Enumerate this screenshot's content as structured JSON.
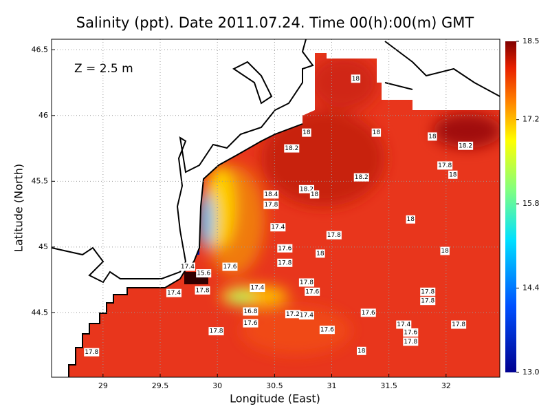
{
  "map": {
    "title": "Salinity (ppt). Date 2011.07.24. Time 00(h):00(m) GMT",
    "annotation": "Z = 2.5 m",
    "x_label": "Longitude (East)",
    "y_label": "Latitude (North)",
    "xlim": [
      28.55,
      32.47
    ],
    "ylim": [
      44.01,
      46.58
    ],
    "xticks": [
      29,
      29.5,
      30,
      30.5,
      31,
      31.5,
      32
    ],
    "yticks": [
      44.5,
      45,
      45.5,
      46,
      46.5
    ],
    "grid": true,
    "colorbar": {
      "lim": [
        13,
        18.5
      ],
      "ticks": [
        {
          "value": 13,
          "label": "13.0"
        },
        14.4,
        15.8,
        17.2,
        18.5
      ]
    },
    "contour_labels": [
      {
        "lon": 31.21,
        "lat": 46.28,
        "value": 18
      },
      {
        "lon": 30.78,
        "lat": 45.87,
        "value": 18
      },
      {
        "lon": 31.39,
        "lat": 45.87,
        "value": 18
      },
      {
        "lon": 31.88,
        "lat": 45.84,
        "value": 18
      },
      {
        "lon": 30.65,
        "lat": 45.75,
        "value": 18.2
      },
      {
        "lon": 32.17,
        "lat": 45.77,
        "value": 18.2
      },
      {
        "lon": 31.99,
        "lat": 45.62,
        "value": 17.8
      },
      {
        "lon": 32.06,
        "lat": 45.55,
        "value": 18
      },
      {
        "lon": 31.26,
        "lat": 45.53,
        "value": 18.2
      },
      {
        "lon": 30.47,
        "lat": 45.4,
        "value": 18.4
      },
      {
        "lon": 30.78,
        "lat": 45.44,
        "value": 18.2
      },
      {
        "lon": 30.85,
        "lat": 45.4,
        "value": 18
      },
      {
        "lon": 30.47,
        "lat": 45.32,
        "value": 17.8
      },
      {
        "lon": 31.69,
        "lat": 45.21,
        "value": 18
      },
      {
        "lon": 30.53,
        "lat": 45.15,
        "value": 17.4
      },
      {
        "lon": 31.02,
        "lat": 45.09,
        "value": 17.8
      },
      {
        "lon": 30.59,
        "lat": 44.99,
        "value": 17.6
      },
      {
        "lon": 30.9,
        "lat": 44.95,
        "value": 18
      },
      {
        "lon": 31.99,
        "lat": 44.97,
        "value": 18
      },
      {
        "lon": 30.11,
        "lat": 44.85,
        "value": 17.6
      },
      {
        "lon": 30.59,
        "lat": 44.88,
        "value": 17.8
      },
      {
        "lon": 29.74,
        "lat": 44.85,
        "value": 17.4
      },
      {
        "lon": 29.88,
        "lat": 44.8,
        "value": 15.6
      },
      {
        "lon": 30.78,
        "lat": 44.73,
        "value": 17.8
      },
      {
        "lon": 30.35,
        "lat": 44.69,
        "value": 17.4
      },
      {
        "lon": 30.83,
        "lat": 44.66,
        "value": 17.6
      },
      {
        "lon": 29.62,
        "lat": 44.65,
        "value": 17.4
      },
      {
        "lon": 29.87,
        "lat": 44.67,
        "value": 17.8
      },
      {
        "lon": 31.84,
        "lat": 44.66,
        "value": 17.8
      },
      {
        "lon": 31.84,
        "lat": 44.59,
        "value": 17.8
      },
      {
        "lon": 30.29,
        "lat": 44.51,
        "value": 16.8
      },
      {
        "lon": 31.32,
        "lat": 44.5,
        "value": 17.6
      },
      {
        "lon": 30.66,
        "lat": 44.49,
        "value": 17.2
      },
      {
        "lon": 30.78,
        "lat": 44.48,
        "value": 17.4
      },
      {
        "lon": 31.63,
        "lat": 44.41,
        "value": 17.4
      },
      {
        "lon": 31.69,
        "lat": 44.35,
        "value": 17.6
      },
      {
        "lon": 32.11,
        "lat": 44.41,
        "value": 17.8
      },
      {
        "lon": 31.69,
        "lat": 44.28,
        "value": 17.8
      },
      {
        "lon": 30.29,
        "lat": 44.42,
        "value": 17.6
      },
      {
        "lon": 30.96,
        "lat": 44.37,
        "value": 17.6
      },
      {
        "lon": 29.99,
        "lat": 44.36,
        "value": 17.8
      },
      {
        "lon": 31.26,
        "lat": 44.21,
        "value": 18
      },
      {
        "lon": 28.9,
        "lat": 44.2,
        "value": 17.8
      }
    ]
  }
}
